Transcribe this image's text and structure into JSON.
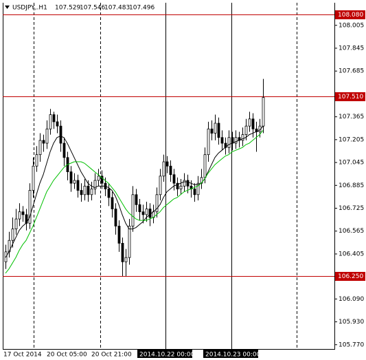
{
  "chart_data": {
    "type": "candlestick",
    "header": {
      "symbol": "USDJPY,.H1",
      "ohlc": [
        107.529,
        107.546,
        107.483,
        107.496
      ]
    },
    "ylim": [
      105.74,
      108.163
    ],
    "yticks": [
      108.005,
      107.845,
      107.685,
      107.365,
      107.205,
      107.045,
      106.885,
      106.725,
      106.565,
      106.405,
      {
        "value": 106.09,
        "label": "106.090"
      },
      {
        "value": 105.93,
        "label": "105.930"
      },
      {
        "value": 105.77,
        "label": "105.770"
      }
    ],
    "levels": [
      {
        "value": 108.08,
        "label": "108.080"
      },
      {
        "value": 107.51,
        "label": "107.510"
      },
      {
        "value": 106.25,
        "label": "106.250"
      }
    ],
    "level_color": "#c00000",
    "x_labels": [
      "17 Oct 2014",
      "20 Oct 05:00",
      "20 Oct 21:00",
      "2014.10.22 00:00",
      "2014.10.23 00:00"
    ],
    "open": [
      106.35,
      106.42,
      106.5,
      106.58,
      106.65,
      106.7,
      106.68,
      106.62,
      106.85,
      107.02,
      107.1,
      107.2,
      107.18,
      107.28,
      107.38,
      107.33,
      107.3,
      107.18,
      107.08,
      106.98,
      106.9,
      106.92,
      106.85,
      106.82,
      106.88,
      106.82,
      106.86,
      106.92,
      106.95,
      106.9,
      106.86,
      106.8,
      106.72,
      106.6,
      106.48,
      106.35,
      106.38,
      106.6,
      106.82,
      106.75,
      106.7,
      106.68,
      106.72,
      106.66,
      106.7,
      106.82,
      106.95,
      107.05,
      107.02,
      106.96,
      106.9,
      106.86,
      106.88,
      106.92,
      106.88,
      106.86,
      106.82,
      106.9,
      106.94,
      107.1,
      107.28,
      107.25,
      107.32,
      107.22,
      107.18,
      107.15,
      107.22,
      107.18,
      107.22,
      107.2,
      107.24,
      107.3,
      107.35,
      107.28,
      107.26,
      107.3
    ],
    "high": [
      106.47,
      106.56,
      106.66,
      106.72,
      106.76,
      106.74,
      106.72,
      106.9,
      107.08,
      107.16,
      107.25,
      107.24,
      107.34,
      107.42,
      107.4,
      107.38,
      107.34,
      107.22,
      107.12,
      107.02,
      106.97,
      106.96,
      106.9,
      106.93,
      106.92,
      106.91,
      106.97,
      107.0,
      106.99,
      106.94,
      106.9,
      106.84,
      106.76,
      106.64,
      106.52,
      106.44,
      106.65,
      106.88,
      106.86,
      106.79,
      106.75,
      106.77,
      106.76,
      106.75,
      106.87,
      107.0,
      107.1,
      107.09,
      107.06,
      107.0,
      106.94,
      106.93,
      106.97,
      106.96,
      106.92,
      106.9,
      106.95,
      107.0,
      107.15,
      107.33,
      107.34,
      107.38,
      107.36,
      107.27,
      107.22,
      107.27,
      107.26,
      107.27,
      107.26,
      107.29,
      107.35,
      107.4,
      107.39,
      107.33,
      107.35,
      107.63
    ],
    "low": [
      106.3,
      106.38,
      106.45,
      106.54,
      106.6,
      106.63,
      106.57,
      106.58,
      106.8,
      106.98,
      107.05,
      107.12,
      107.14,
      107.24,
      107.28,
      107.25,
      107.12,
      107.02,
      106.92,
      106.84,
      106.86,
      106.8,
      106.77,
      106.78,
      106.77,
      106.78,
      106.82,
      106.88,
      106.86,
      106.81,
      106.74,
      106.66,
      106.54,
      106.42,
      106.25,
      106.25,
      106.33,
      106.56,
      106.7,
      106.64,
      106.62,
      106.63,
      106.6,
      106.62,
      106.66,
      106.78,
      106.91,
      106.97,
      106.91,
      106.85,
      106.81,
      106.82,
      106.84,
      106.83,
      106.8,
      106.77,
      106.78,
      106.86,
      106.9,
      107.05,
      107.2,
      107.2,
      107.17,
      107.13,
      107.1,
      107.11,
      107.13,
      107.14,
      107.15,
      107.16,
      107.2,
      107.26,
      107.22,
      107.12,
      107.22,
      107.25
    ],
    "close": [
      106.42,
      106.5,
      106.58,
      106.65,
      106.7,
      106.68,
      106.62,
      106.85,
      107.02,
      107.1,
      107.2,
      107.18,
      107.28,
      107.38,
      107.33,
      107.3,
      107.18,
      107.08,
      106.98,
      106.9,
      106.92,
      106.85,
      106.82,
      106.88,
      106.82,
      106.86,
      106.92,
      106.95,
      106.9,
      106.86,
      106.8,
      106.72,
      106.6,
      106.48,
      106.35,
      106.38,
      106.6,
      106.82,
      106.75,
      106.7,
      106.68,
      106.72,
      106.66,
      106.7,
      106.82,
      106.95,
      107.05,
      107.02,
      106.96,
      106.9,
      106.86,
      106.88,
      106.92,
      106.88,
      106.86,
      106.82,
      106.9,
      106.94,
      107.1,
      107.28,
      107.25,
      107.32,
      107.22,
      107.18,
      107.15,
      107.22,
      107.18,
      107.22,
      107.2,
      107.24,
      107.3,
      107.35,
      107.28,
      107.26,
      107.3,
      107.5
    ],
    "series": [
      {
        "color": "#000000",
        "values": [
          106.38,
          106.42,
          106.47,
          106.52,
          106.57,
          106.6,
          106.62,
          106.66,
          106.74,
          106.82,
          106.9,
          106.96,
          107.04,
          107.12,
          107.18,
          107.22,
          107.23,
          107.22,
          107.18,
          107.13,
          107.08,
          107.03,
          106.98,
          106.94,
          106.9,
          106.88,
          106.87,
          106.88,
          106.88,
          106.88,
          106.87,
          106.85,
          106.81,
          106.75,
          106.68,
          106.62,
          106.58,
          106.58,
          106.59,
          106.61,
          106.63,
          106.66,
          106.68,
          106.7,
          106.72,
          106.75,
          106.8,
          106.84,
          106.86,
          106.88,
          106.89,
          106.9,
          106.91,
          106.91,
          106.9,
          106.89,
          106.89,
          106.9,
          106.93,
          106.98,
          107.03,
          107.08,
          107.11,
          107.13,
          107.15,
          107.17,
          107.18,
          107.19,
          107.2,
          107.21,
          107.22,
          107.24,
          107.25,
          107.26,
          107.27,
          107.3
        ]
      },
      {
        "color": "#00c000",
        "values": [
          106.27,
          106.3,
          106.34,
          106.38,
          106.43,
          106.47,
          106.5,
          106.55,
          106.6,
          106.66,
          106.72,
          106.78,
          106.84,
          106.88,
          106.92,
          106.95,
          106.98,
          107.01,
          107.03,
          107.04,
          107.05,
          107.05,
          107.05,
          107.04,
          107.02,
          107.0,
          106.98,
          106.96,
          106.94,
          106.92,
          106.9,
          106.87,
          106.84,
          106.8,
          106.76,
          106.72,
          106.69,
          106.67,
          106.65,
          106.64,
          106.64,
          106.64,
          106.65,
          106.66,
          106.68,
          106.7,
          106.73,
          106.75,
          106.77,
          106.79,
          106.8,
          106.82,
          106.84,
          106.85,
          106.86,
          106.87,
          106.88,
          106.9,
          106.93,
          106.97,
          107.0,
          107.03,
          107.05,
          107.07,
          107.09,
          107.1,
          107.12,
          107.13,
          107.14,
          107.15,
          107.17,
          107.18,
          107.2,
          107.22,
          107.24,
          107.27
        ]
      }
    ]
  }
}
